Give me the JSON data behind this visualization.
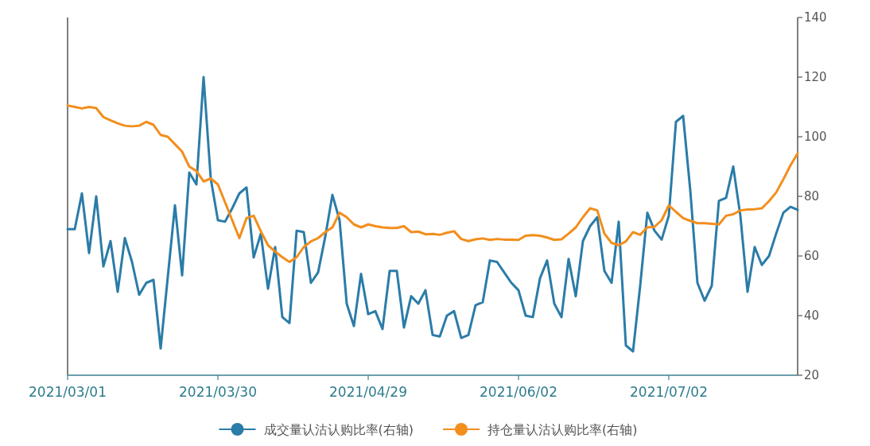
{
  "chart_data": {
    "type": "line",
    "categories": [
      "2021/03/01",
      null,
      null,
      null,
      null,
      null,
      null,
      null,
      null,
      null,
      null,
      null,
      null,
      null,
      null,
      null,
      null,
      null,
      null,
      null,
      null,
      "2021/03/30",
      null,
      null,
      null,
      null,
      null,
      null,
      null,
      null,
      null,
      null,
      null,
      null,
      null,
      null,
      null,
      null,
      null,
      null,
      null,
      null,
      "2021/04/29",
      null,
      null,
      null,
      null,
      null,
      null,
      null,
      null,
      null,
      null,
      null,
      null,
      null,
      null,
      null,
      null,
      null,
      null,
      null,
      null,
      "2021/06/02",
      null,
      null,
      null,
      null,
      null,
      null,
      null,
      null,
      null,
      null,
      null,
      null,
      null,
      null,
      null,
      null,
      null,
      null,
      null,
      null,
      "2021/07/02",
      null,
      null,
      null,
      null,
      null,
      null,
      null,
      null,
      null,
      null,
      null,
      null,
      null,
      null,
      null,
      null,
      null,
      null
    ],
    "series": [
      {
        "name": "成交量认沽认购比率(右轴)",
        "color": "#2b7ca8",
        "values": [
          69,
          69,
          81,
          61,
          80,
          56.5,
          65,
          48,
          66,
          58,
          47,
          51,
          52,
          29,
          53,
          77,
          53.5,
          88,
          84,
          120,
          86,
          72,
          71.5,
          76,
          81,
          83,
          59.5,
          67.5,
          49,
          63,
          39.5,
          37.5,
          68.5,
          68,
          51,
          54.5,
          66.5,
          80.5,
          72,
          44,
          36.5,
          54,
          40.5,
          41.5,
          35.5,
          55,
          55,
          36,
          46.5,
          44,
          48.5,
          33.5,
          33,
          40,
          41.5,
          32.5,
          33.5,
          43.5,
          44.5,
          58.5,
          58,
          54.5,
          51,
          48.5,
          40,
          39.5,
          52.5,
          58.5,
          44,
          39.5,
          59,
          46.5,
          65,
          70,
          73,
          55,
          51,
          71.5,
          30,
          28,
          50,
          74.5,
          68.5,
          65.5,
          73.5,
          105,
          107,
          82,
          51,
          45,
          50,
          78.5,
          79.5,
          90,
          73.5,
          48,
          63,
          57,
          60,
          67.5,
          74.5,
          76.5,
          75.5
        ]
      },
      {
        "name": "持仓量认沽认购比率(右轴)",
        "color": "#f28e1c",
        "values": [
          110.5,
          110,
          109.5,
          110,
          109.6,
          106.6,
          105.5,
          104.5,
          103.7,
          103.5,
          103.7,
          105,
          104,
          100.6,
          100,
          97.5,
          95,
          90,
          88.5,
          85,
          86,
          84,
          78,
          72,
          66,
          72.7,
          73.5,
          68.3,
          63.6,
          61.5,
          59.6,
          58,
          59.6,
          63,
          64.9,
          66,
          68,
          69.6,
          74.5,
          73,
          70.6,
          69.6,
          70.6,
          70,
          69.6,
          69.4,
          69.4,
          70,
          68,
          68.2,
          67.3,
          67.4,
          67.1,
          67.8,
          68.3,
          65.7,
          65,
          65.6,
          65.9,
          65.4,
          65.7,
          65.5,
          65.5,
          65.4,
          66.8,
          67,
          66.8,
          66.2,
          65.4,
          65.6,
          67.5,
          69.6,
          73,
          76,
          75.3,
          67.5,
          64.4,
          63.6,
          64.9,
          68,
          67.1,
          69.6,
          69.8,
          72,
          77,
          74.8,
          72.7,
          71.8,
          71,
          71,
          70.8,
          70.6,
          73.5,
          74,
          75.3,
          75.6,
          75.7,
          76,
          78.4,
          81.3,
          85.7,
          90.4,
          94.4
        ]
      }
    ],
    "ylim": [
      20,
      140
    ],
    "yticks": [
      20,
      40,
      60,
      80,
      100,
      120,
      140
    ],
    "grid": false,
    "legend": "bottom"
  }
}
